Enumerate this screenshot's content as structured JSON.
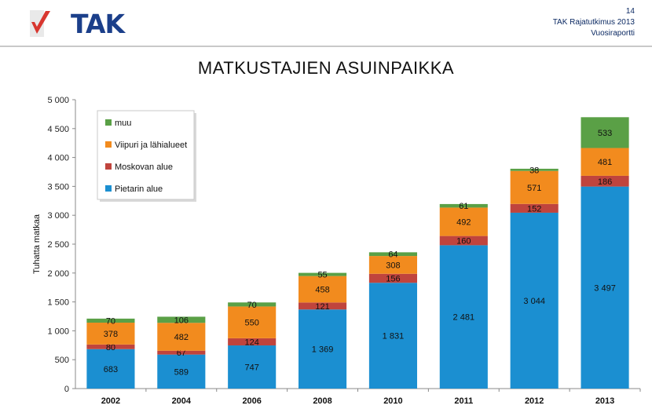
{
  "header": {
    "logo_text": "TAK",
    "page_number": "14",
    "report_title": "TAK Rajatutkimus 2013",
    "report_subtitle": "Vuosiraportti"
  },
  "colors": {
    "pietari": "#1b8fd1",
    "moskova": "#c0443d",
    "viipuri": "#f28b1e",
    "muu": "#5aa046",
    "brand": "#1b3f8a",
    "logo_check": "#d8362f"
  },
  "chart_data": {
    "type": "bar",
    "stacked": true,
    "title": "MATKUSTAJIEN ASUINPAIKKA",
    "xlabel": "",
    "ylabel": "Tuhatta matkaa",
    "ylim": [
      0,
      5000
    ],
    "yticks": [
      "0",
      "500",
      "1 000",
      "1 500",
      "2 000",
      "2 500",
      "3 000",
      "3 500",
      "4 000",
      "4 500",
      "5 000"
    ],
    "ytick_values": [
      0,
      500,
      1000,
      1500,
      2000,
      2500,
      3000,
      3500,
      4000,
      4500,
      5000
    ],
    "grid": false,
    "legend_position": "top-left",
    "categories": [
      "2002",
      "2004",
      "2006",
      "2008",
      "2010",
      "2011",
      "2012",
      "2013"
    ],
    "series": [
      {
        "name": "Pietarin alue",
        "color": "#1b8fd1",
        "values": [
          683,
          589,
          747,
          1369,
          1831,
          2481,
          3044,
          3497
        ],
        "labels": [
          "683",
          "589",
          "747",
          "1 369",
          "1 831",
          "2 481",
          "3 044",
          "3 497"
        ]
      },
      {
        "name": "Moskovan alue",
        "color": "#c0443d",
        "values": [
          80,
          67,
          124,
          121,
          156,
          160,
          152,
          186
        ],
        "labels": [
          "80",
          "67",
          "124",
          "121",
          "156",
          "160",
          "152",
          "186"
        ]
      },
      {
        "name": "Viipuri ja lähialueet",
        "color": "#f28b1e",
        "values": [
          378,
          482,
          550,
          458,
          308,
          492,
          571,
          481
        ],
        "labels": [
          "378",
          "482",
          "550",
          "458",
          "308",
          "492",
          "571",
          "481"
        ]
      },
      {
        "name": "muu",
        "color": "#5aa046",
        "values": [
          70,
          106,
          70,
          55,
          64,
          61,
          38,
          533
        ],
        "labels": [
          "70",
          "106",
          "70",
          "55",
          "64",
          "61",
          "38",
          "533"
        ]
      }
    ],
    "legend_order": [
      "muu",
      "Viipuri ja lähialueet",
      "Moskovan alue",
      "Pietarin alue"
    ]
  }
}
